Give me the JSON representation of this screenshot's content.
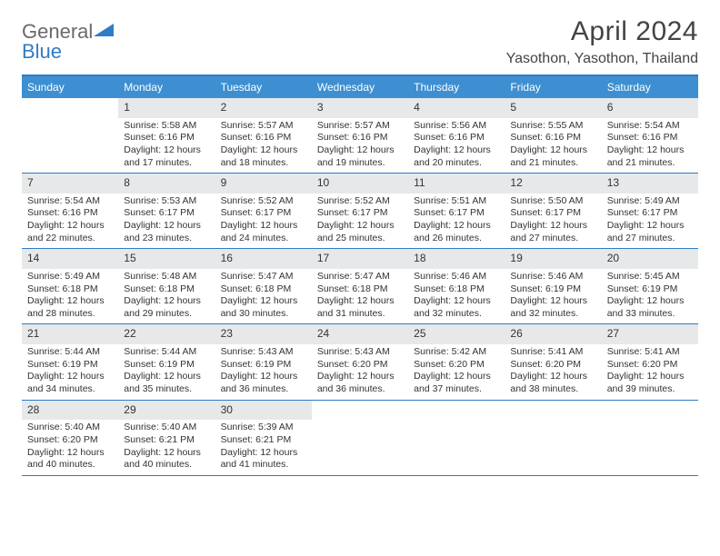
{
  "logo": {
    "part1": "General",
    "part2": "Blue"
  },
  "title": "April 2024",
  "location": "Yasothon, Yasothon, Thailand",
  "colors": {
    "header_bg": "#3d8fd1",
    "border": "#2f7cc4",
    "daynum_bg": "#e6e8ea",
    "text": "#333333",
    "logo_gray": "#6a6a6a",
    "logo_blue": "#2f7cc4"
  },
  "days_of_week": [
    "Sunday",
    "Monday",
    "Tuesday",
    "Wednesday",
    "Thursday",
    "Friday",
    "Saturday"
  ],
  "start_offset": 1,
  "days": [
    {
      "n": 1,
      "rise": "5:58 AM",
      "set": "6:16 PM",
      "dl": "12 hours and 17 minutes."
    },
    {
      "n": 2,
      "rise": "5:57 AM",
      "set": "6:16 PM",
      "dl": "12 hours and 18 minutes."
    },
    {
      "n": 3,
      "rise": "5:57 AM",
      "set": "6:16 PM",
      "dl": "12 hours and 19 minutes."
    },
    {
      "n": 4,
      "rise": "5:56 AM",
      "set": "6:16 PM",
      "dl": "12 hours and 20 minutes."
    },
    {
      "n": 5,
      "rise": "5:55 AM",
      "set": "6:16 PM",
      "dl": "12 hours and 21 minutes."
    },
    {
      "n": 6,
      "rise": "5:54 AM",
      "set": "6:16 PM",
      "dl": "12 hours and 21 minutes."
    },
    {
      "n": 7,
      "rise": "5:54 AM",
      "set": "6:16 PM",
      "dl": "12 hours and 22 minutes."
    },
    {
      "n": 8,
      "rise": "5:53 AM",
      "set": "6:17 PM",
      "dl": "12 hours and 23 minutes."
    },
    {
      "n": 9,
      "rise": "5:52 AM",
      "set": "6:17 PM",
      "dl": "12 hours and 24 minutes."
    },
    {
      "n": 10,
      "rise": "5:52 AM",
      "set": "6:17 PM",
      "dl": "12 hours and 25 minutes."
    },
    {
      "n": 11,
      "rise": "5:51 AM",
      "set": "6:17 PM",
      "dl": "12 hours and 26 minutes."
    },
    {
      "n": 12,
      "rise": "5:50 AM",
      "set": "6:17 PM",
      "dl": "12 hours and 27 minutes."
    },
    {
      "n": 13,
      "rise": "5:49 AM",
      "set": "6:17 PM",
      "dl": "12 hours and 27 minutes."
    },
    {
      "n": 14,
      "rise": "5:49 AM",
      "set": "6:18 PM",
      "dl": "12 hours and 28 minutes."
    },
    {
      "n": 15,
      "rise": "5:48 AM",
      "set": "6:18 PM",
      "dl": "12 hours and 29 minutes."
    },
    {
      "n": 16,
      "rise": "5:47 AM",
      "set": "6:18 PM",
      "dl": "12 hours and 30 minutes."
    },
    {
      "n": 17,
      "rise": "5:47 AM",
      "set": "6:18 PM",
      "dl": "12 hours and 31 minutes."
    },
    {
      "n": 18,
      "rise": "5:46 AM",
      "set": "6:18 PM",
      "dl": "12 hours and 32 minutes."
    },
    {
      "n": 19,
      "rise": "5:46 AM",
      "set": "6:19 PM",
      "dl": "12 hours and 32 minutes."
    },
    {
      "n": 20,
      "rise": "5:45 AM",
      "set": "6:19 PM",
      "dl": "12 hours and 33 minutes."
    },
    {
      "n": 21,
      "rise": "5:44 AM",
      "set": "6:19 PM",
      "dl": "12 hours and 34 minutes."
    },
    {
      "n": 22,
      "rise": "5:44 AM",
      "set": "6:19 PM",
      "dl": "12 hours and 35 minutes."
    },
    {
      "n": 23,
      "rise": "5:43 AM",
      "set": "6:19 PM",
      "dl": "12 hours and 36 minutes."
    },
    {
      "n": 24,
      "rise": "5:43 AM",
      "set": "6:20 PM",
      "dl": "12 hours and 36 minutes."
    },
    {
      "n": 25,
      "rise": "5:42 AM",
      "set": "6:20 PM",
      "dl": "12 hours and 37 minutes."
    },
    {
      "n": 26,
      "rise": "5:41 AM",
      "set": "6:20 PM",
      "dl": "12 hours and 38 minutes."
    },
    {
      "n": 27,
      "rise": "5:41 AM",
      "set": "6:20 PM",
      "dl": "12 hours and 39 minutes."
    },
    {
      "n": 28,
      "rise": "5:40 AM",
      "set": "6:20 PM",
      "dl": "12 hours and 40 minutes."
    },
    {
      "n": 29,
      "rise": "5:40 AM",
      "set": "6:21 PM",
      "dl": "12 hours and 40 minutes."
    },
    {
      "n": 30,
      "rise": "5:39 AM",
      "set": "6:21 PM",
      "dl": "12 hours and 41 minutes."
    }
  ],
  "labels": {
    "sunrise": "Sunrise:",
    "sunset": "Sunset:",
    "daylight": "Daylight:"
  }
}
